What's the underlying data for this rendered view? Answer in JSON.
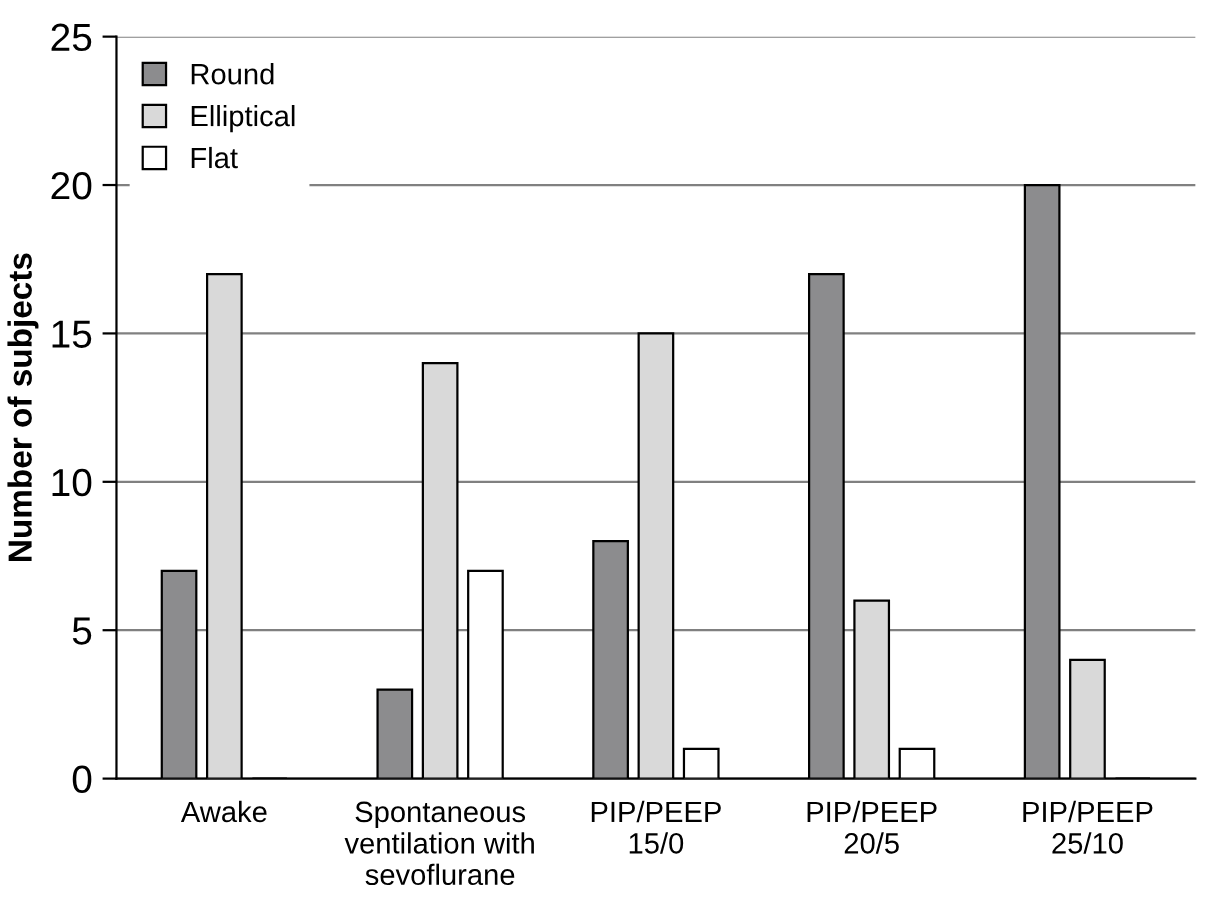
{
  "chart_data": {
    "type": "bar",
    "ylabel": "Number of subjects",
    "categories": [
      "Awake",
      "Spontaneous\nventilation with\nsevoflurane",
      "PIP/PEEP\n15/0",
      "PIP/PEEP\n20/5",
      "PIP/PEEP\n25/10"
    ],
    "series": [
      {
        "name": "Round",
        "color": "#8c8c8e",
        "values": [
          7,
          3,
          8,
          17,
          20
        ]
      },
      {
        "name": "Elliptical",
        "color": "#d9d9d9",
        "values": [
          17,
          14,
          15,
          6,
          4
        ]
      },
      {
        "name": "Flat",
        "color": "#ffffff",
        "values": [
          0,
          7,
          1,
          1,
          0
        ]
      }
    ],
    "ylim": [
      0,
      25
    ],
    "yticks": [
      0,
      5,
      10,
      15,
      20,
      25
    ],
    "grid": "y",
    "legend": "top left"
  }
}
